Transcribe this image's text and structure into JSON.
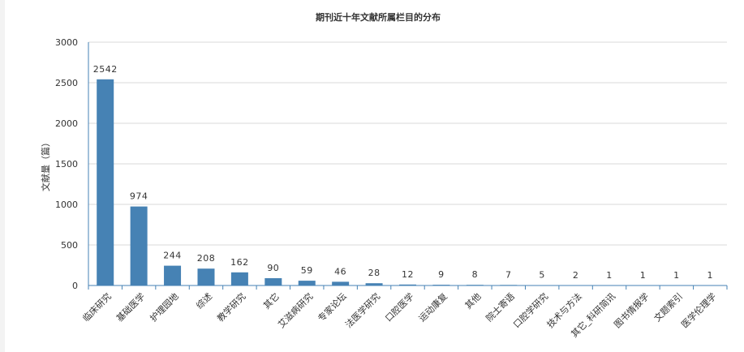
{
  "chart_data": {
    "type": "bar",
    "title": "期刊近十年文献所属栏目的分布",
    "xlabel": "",
    "ylabel": "文献量（篇）",
    "ylim": [
      0,
      3000
    ],
    "yticks": [
      0,
      500,
      1000,
      1500,
      2000,
      2500,
      3000
    ],
    "grid": true,
    "bar_color": "#4682b4",
    "categories": [
      "临床研究",
      "基础医学",
      "护理园地",
      "综述",
      "教学研究",
      "其它",
      "艾滋病研究",
      "专家论坛",
      "法医学研究",
      "口腔医学",
      "运动康复",
      "其他",
      "院士寄语",
      "口腔学研究",
      "技术与方法",
      "其它_科研简讯",
      "图书情报学",
      "文题索引",
      "医学伦理学"
    ],
    "values": [
      2542,
      974,
      244,
      208,
      162,
      90,
      59,
      46,
      28,
      12,
      9,
      8,
      7,
      5,
      2,
      1,
      1,
      1,
      1
    ]
  }
}
